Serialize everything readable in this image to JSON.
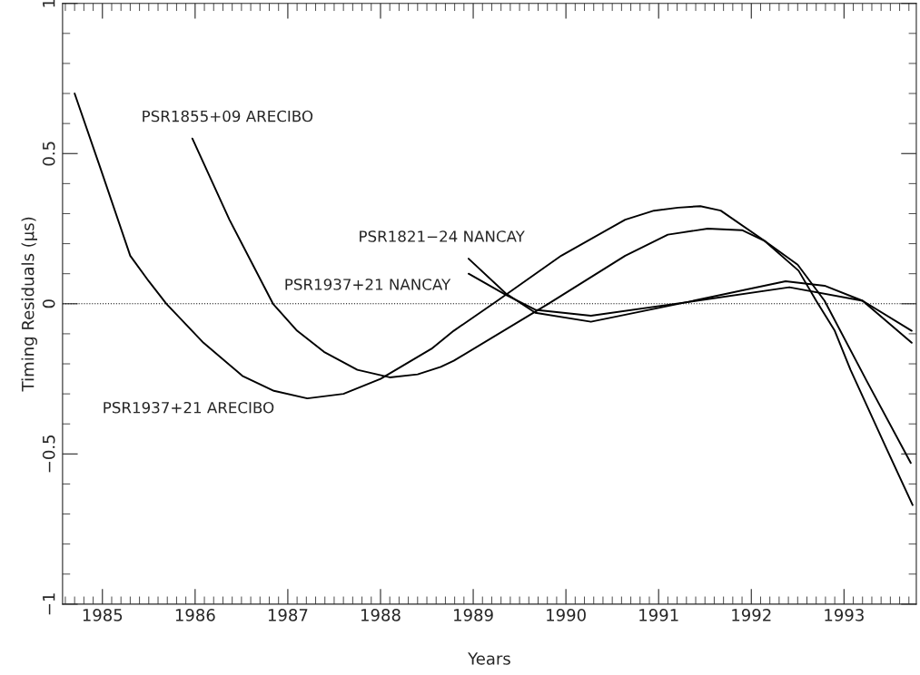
{
  "chart_data": {
    "type": "line",
    "xlabel": "Years",
    "ylabel": "Timing Residuals (μs)",
    "xlim": [
      1984.57,
      1993.78
    ],
    "xticks": [
      1985,
      1986,
      1987,
      1988,
      1989,
      1990,
      1991,
      1992,
      1993
    ],
    "ylim": [
      -1,
      1
    ],
    "yticks": [
      {
        "value": -1,
        "label": "−1"
      },
      {
        "value": -0.5,
        "label": "−0.5"
      },
      0,
      0.5,
      1
    ],
    "grid": false,
    "legend": false,
    "marker": "none",
    "line_style": "solid",
    "ref_lines": [
      {
        "axis": "y",
        "value": 0,
        "line_style": "dotted",
        "color": "#000000"
      }
    ],
    "series": [
      {
        "name": "PSR1937+21 ARECIBO",
        "color": "#000000",
        "x": [
          1984.7,
          1984.98,
          1985.3,
          1985.5,
          1985.69,
          1986.09,
          1986.51,
          1986.85,
          1987.21,
          1987.6,
          1988.0,
          1988.55,
          1988.79,
          1989.26,
          1989.95,
          1990.64,
          1990.95,
          1991.21,
          1991.45,
          1991.67,
          1992.14,
          1992.51,
          1992.7,
          1992.9,
          1993.07,
          1993.44,
          1993.74
        ],
        "values": [
          0.7,
          0.45,
          0.16,
          0.075,
          0,
          -0.13,
          -0.24,
          -0.29,
          -0.315,
          -0.3,
          -0.25,
          -0.15,
          -0.09,
          0.01,
          0.16,
          0.28,
          0.31,
          0.32,
          0.325,
          0.31,
          0.21,
          0.11,
          0.01,
          -0.09,
          -0.22,
          -0.47,
          -0.67
        ]
      },
      {
        "name": "PSR1855+09 ARECIBO",
        "color": "#000000",
        "x": [
          1985.97,
          1986.37,
          1986.84,
          1987.1,
          1987.39,
          1987.75,
          1988.1,
          1988.4,
          1988.65,
          1988.79,
          1989.81,
          1990.64,
          1991.1,
          1991.53,
          1991.9,
          1992.14,
          1992.5,
          1992.79,
          1993.25,
          1993.72
        ],
        "values": [
          0.55,
          0.28,
          0,
          -0.09,
          -0.16,
          -0.22,
          -0.245,
          -0.235,
          -0.21,
          -0.19,
          0.0,
          0.16,
          0.23,
          0.25,
          0.245,
          0.21,
          0.13,
          0.01,
          -0.26,
          -0.53
        ]
      },
      {
        "name": "PSR1821−24 NANCAY",
        "color": "#000000",
        "x": [
          1988.95,
          1989.35,
          1989.67,
          1990.27,
          1991.3,
          1992.37,
          1992.79,
          1993.2,
          1993.73
        ],
        "values": [
          0.15,
          0.035,
          -0.03,
          -0.06,
          0.005,
          0.075,
          0.06,
          0.01,
          -0.13
        ]
      },
      {
        "name": "PSR1937+21 NANCAY",
        "color": "#000000",
        "x": [
          1988.95,
          1989.35,
          1989.67,
          1990.27,
          1991.3,
          1992.41,
          1993.2,
          1993.73
        ],
        "values": [
          0.1,
          0.03,
          -0.02,
          -0.04,
          0.005,
          0.055,
          0.01,
          -0.09
        ]
      }
    ]
  }
}
